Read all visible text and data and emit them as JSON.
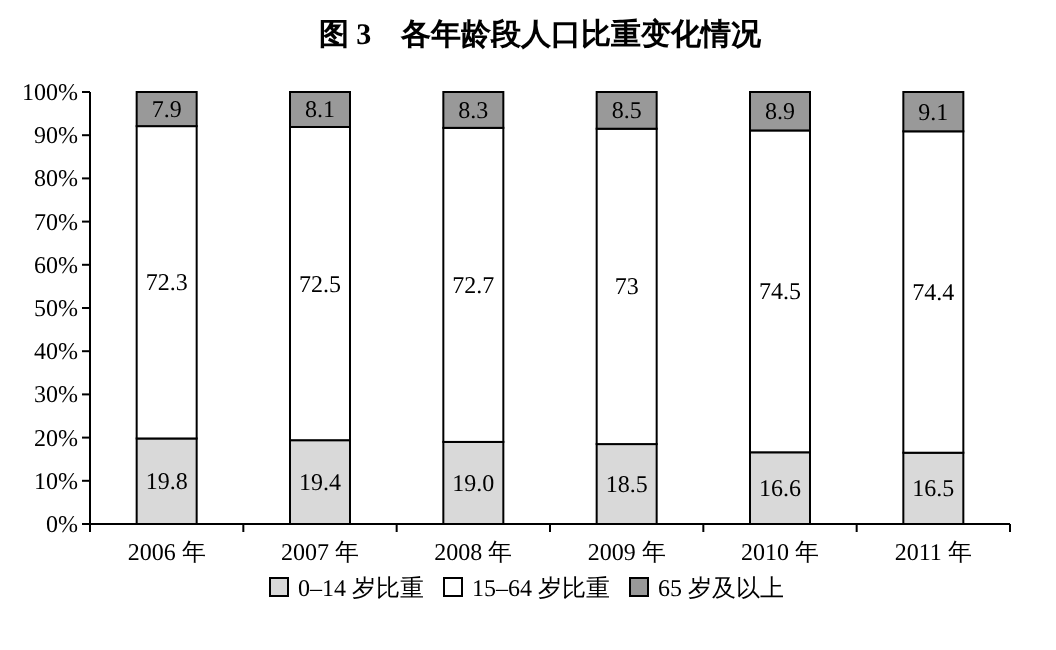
{
  "chart_data": {
    "type": "bar",
    "title": "图 3　各年龄段人口比重变化情况",
    "categories": [
      "2006 年",
      "2007 年",
      "2008 年",
      "2009 年",
      "2010 年",
      "2011 年"
    ],
    "stacked": true,
    "series": [
      {
        "name": "0–14 岁比重",
        "color": "#d9d9d9",
        "values": [
          19.8,
          19.4,
          19.0,
          18.5,
          16.6,
          16.5
        ],
        "value_labels": [
          "19.8",
          "19.4",
          "19.0",
          "18.5",
          "16.6",
          "16.5"
        ]
      },
      {
        "name": "15–64 岁比重",
        "color": "#ffffff",
        "values": [
          72.3,
          72.5,
          72.7,
          73,
          74.5,
          74.4
        ],
        "value_labels": [
          "72.3",
          "72.5",
          "72.7",
          "73",
          "74.5",
          "74.4"
        ]
      },
      {
        "name": "65 岁及以上",
        "color": "#999999",
        "values": [
          7.9,
          8.1,
          8.3,
          8.5,
          8.9,
          9.1
        ],
        "value_labels": [
          "7.9",
          "8.1",
          "8.3",
          "8.5",
          "8.9",
          "9.1"
        ]
      }
    ],
    "ylim": [
      0,
      100
    ],
    "yticks": [
      {
        "value": 0,
        "label": "0%"
      },
      {
        "value": 10,
        "label": "10%"
      },
      {
        "value": 20,
        "label": "20%"
      },
      {
        "value": 30,
        "label": "30%"
      },
      {
        "value": 40,
        "label": "40%"
      },
      {
        "value": 50,
        "label": "50%"
      },
      {
        "value": 60,
        "label": "60%"
      },
      {
        "value": 70,
        "label": "70%"
      },
      {
        "value": 80,
        "label": "80%"
      },
      {
        "value": 90,
        "label": "90%"
      },
      {
        "value": 100,
        "label": "100%"
      }
    ],
    "grid": false,
    "legend": "bottom"
  }
}
